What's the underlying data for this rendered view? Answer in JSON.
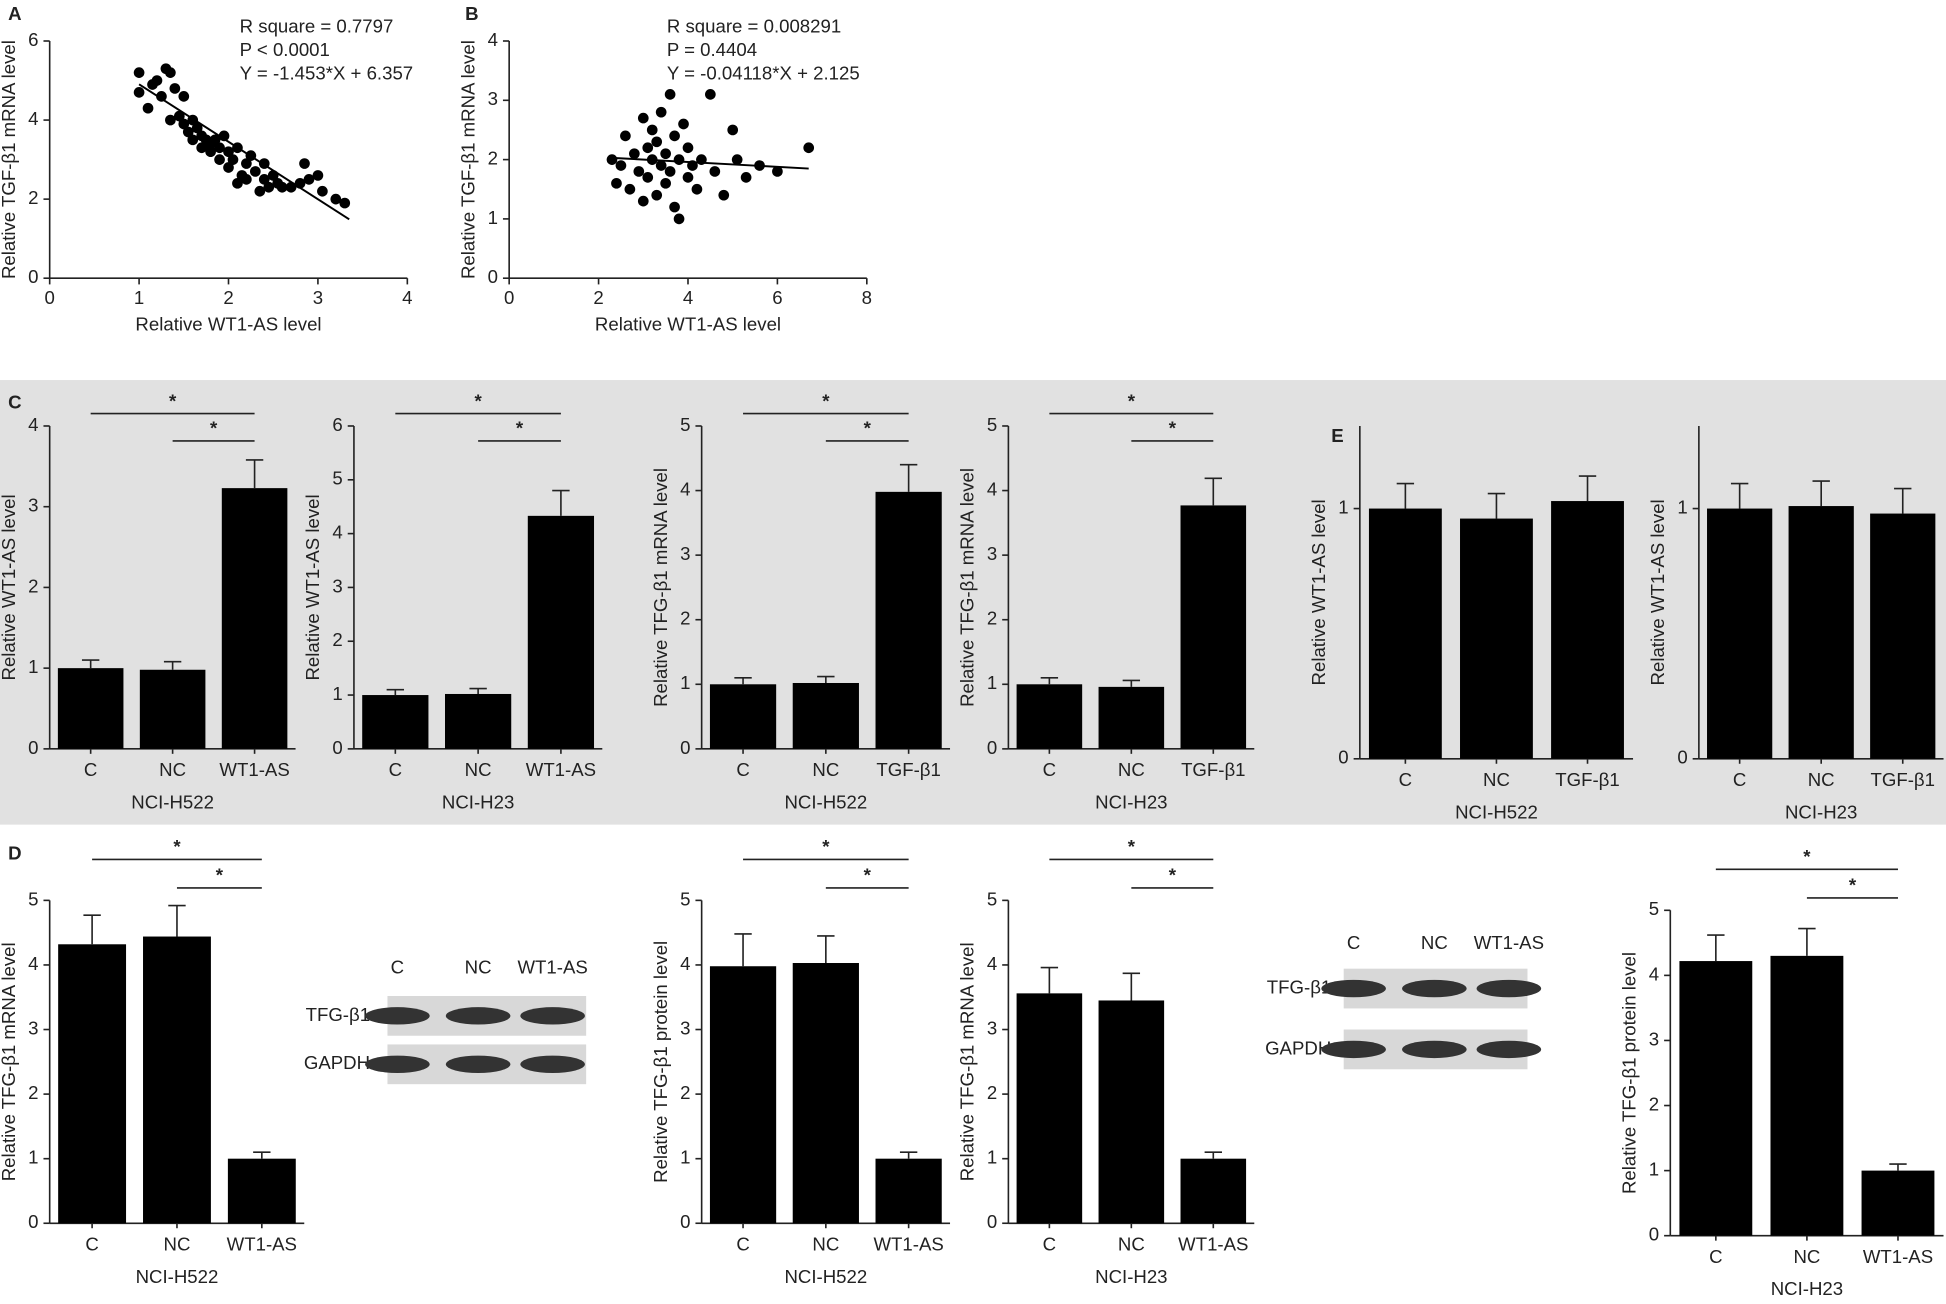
{
  "chart_data": [
    {
      "type": "scatter",
      "panel": "A",
      "xlabel": "Relative WT1-AS level",
      "ylabel": "Relative TGF-β1 mRNA level",
      "annotations": [
        "R square = 0.7797",
        "P < 0.0001",
        "Y = -1.453*X + 6.357"
      ],
      "xlim": [
        0,
        4
      ],
      "xticks": [
        0,
        1,
        2,
        3,
        4
      ],
      "ylim": [
        0,
        6
      ],
      "yticks": [
        0,
        2,
        4,
        6
      ],
      "color": "#000000",
      "x": [
        1.0,
        1.0,
        1.1,
        1.15,
        1.2,
        1.25,
        1.3,
        1.35,
        1.35,
        1.4,
        1.45,
        1.5,
        1.5,
        1.55,
        1.6,
        1.6,
        1.65,
        1.7,
        1.7,
        1.75,
        1.8,
        1.8,
        1.85,
        1.9,
        1.9,
        1.95,
        2.0,
        2.0,
        2.05,
        2.1,
        2.1,
        2.15,
        2.2,
        2.2,
        2.25,
        2.3,
        2.35,
        2.4,
        2.4,
        2.45,
        2.5,
        2.55,
        2.6,
        2.7,
        2.8,
        2.85,
        2.9,
        3.0,
        3.05,
        3.2,
        3.3
      ],
      "y": [
        5.2,
        4.7,
        4.3,
        4.9,
        5.0,
        4.6,
        5.3,
        5.2,
        4.0,
        4.8,
        4.1,
        4.6,
        3.9,
        3.7,
        4.0,
        3.5,
        3.8,
        3.6,
        3.3,
        3.5,
        3.4,
        3.2,
        3.5,
        3.3,
        3.0,
        3.6,
        3.2,
        2.8,
        3.0,
        2.4,
        3.3,
        2.6,
        2.9,
        2.5,
        3.1,
        2.7,
        2.2,
        2.5,
        2.9,
        2.3,
        2.6,
        2.4,
        2.3,
        2.3,
        2.4,
        2.9,
        2.5,
        2.6,
        2.2,
        2.0,
        1.9
      ],
      "fit": {
        "x": [
          1.0,
          3.35
        ],
        "y": [
          4.904,
          1.489
        ]
      }
    },
    {
      "type": "scatter",
      "panel": "B",
      "xlabel": "Relative WT1-AS level",
      "ylabel": "Relative TGF-β1 mRNA level",
      "annotations": [
        "R square = 0.008291",
        "P = 0.4404",
        "Y = -0.04118*X + 2.125"
      ],
      "xlim": [
        0,
        8
      ],
      "xticks": [
        0,
        2,
        4,
        6,
        8
      ],
      "ylim": [
        0,
        4
      ],
      "yticks": [
        0,
        1,
        2,
        3,
        4
      ],
      "color": "#000000",
      "x": [
        2.3,
        2.4,
        2.5,
        2.6,
        2.7,
        2.8,
        2.9,
        3.0,
        3.0,
        3.1,
        3.1,
        3.2,
        3.2,
        3.3,
        3.3,
        3.4,
        3.4,
        3.5,
        3.5,
        3.6,
        3.6,
        3.7,
        3.7,
        3.8,
        3.8,
        3.9,
        4.0,
        4.0,
        4.1,
        4.2,
        4.3,
        4.5,
        4.6,
        4.8,
        5.0,
        5.1,
        5.3,
        5.6,
        6.0,
        6.7
      ],
      "y": [
        2.0,
        1.6,
        1.9,
        2.4,
        1.5,
        2.1,
        1.8,
        2.7,
        1.3,
        2.2,
        1.7,
        2.5,
        2.0,
        1.4,
        2.3,
        1.9,
        2.8,
        2.1,
        1.6,
        3.1,
        1.8,
        2.4,
        1.2,
        2.0,
        1.0,
        2.6,
        1.7,
        2.2,
        1.9,
        1.5,
        2.0,
        3.1,
        1.8,
        1.4,
        2.5,
        2.0,
        1.7,
        1.9,
        1.8,
        2.2
      ],
      "fit": {
        "x": [
          2.3,
          6.7
        ],
        "y": [
          2.03,
          1.849
        ]
      }
    },
    {
      "type": "bar",
      "panel": "C",
      "ylabel": "Relative WT1-AS level",
      "xlabel": "NCI-H522",
      "categories": [
        "C",
        "NC",
        "WT1-AS"
      ],
      "values": [
        1.0,
        0.98,
        3.23
      ],
      "errors": [
        0.1,
        0.1,
        0.35
      ],
      "ylim": [
        0,
        4
      ],
      "yticks": [
        0,
        1,
        2,
        3,
        4
      ],
      "color": "#000000",
      "significance": [
        "*",
        "*"
      ]
    },
    {
      "type": "bar",
      "ylabel": "Relative WT1-AS level",
      "xlabel": "NCI-H23",
      "categories": [
        "C",
        "NC",
        "WT1-AS"
      ],
      "values": [
        1.0,
        1.02,
        4.33
      ],
      "errors": [
        0.1,
        0.1,
        0.47
      ],
      "ylim": [
        0,
        6
      ],
      "yticks": [
        0,
        1,
        2,
        3,
        4,
        5,
        6
      ],
      "color": "#000000",
      "significance": [
        "*",
        "*"
      ]
    },
    {
      "type": "bar",
      "ylabel": "Relative TFG-β1 mRNA level",
      "xlabel": "NCI-H522",
      "categories": [
        "C",
        "NC",
        "TGF-β1"
      ],
      "values": [
        1.0,
        1.02,
        3.98
      ],
      "errors": [
        0.1,
        0.1,
        0.42
      ],
      "ylim": [
        0,
        5
      ],
      "yticks": [
        0,
        1,
        2,
        3,
        4,
        5
      ],
      "color": "#000000",
      "significance": [
        "*",
        "*"
      ]
    },
    {
      "type": "bar",
      "ylabel": "Relative TFG-β1 mRNA level",
      "xlabel": "NCI-H23",
      "categories": [
        "C",
        "NC",
        "TGF-β1"
      ],
      "values": [
        1.0,
        0.96,
        3.77
      ],
      "errors": [
        0.1,
        0.1,
        0.42
      ],
      "ylim": [
        0,
        5
      ],
      "yticks": [
        0,
        1,
        2,
        3,
        4,
        5
      ],
      "color": "#000000",
      "significance": [
        "*",
        "*"
      ]
    },
    {
      "type": "bar",
      "panel": "E",
      "ylabel": "Relative WT1-AS level",
      "xlabel": "NCI-H522",
      "categories": [
        "C",
        "NC",
        "TGF-β1"
      ],
      "values": [
        1.0,
        0.96,
        1.03
      ],
      "errors": [
        0.1,
        0.1,
        0.1
      ],
      "ylim": [
        0,
        1.33
      ],
      "yticks": [
        0,
        1
      ],
      "color": "#000000"
    },
    {
      "type": "bar",
      "ylabel": "Relative WT1-AS level",
      "xlabel": "NCI-H23",
      "categories": [
        "C",
        "NC",
        "TGF-β1"
      ],
      "values": [
        1.0,
        1.01,
        0.98
      ],
      "errors": [
        0.1,
        0.1,
        0.1
      ],
      "ylim": [
        0,
        1.33
      ],
      "yticks": [
        0,
        1
      ],
      "color": "#000000"
    },
    {
      "type": "bar",
      "panel": "D",
      "ylabel": "Relative TFG-β1 mRNA level",
      "xlabel": "NCI-H522",
      "categories": [
        "C",
        "NC",
        "WT1-AS"
      ],
      "values": [
        4.32,
        4.44,
        1.0
      ],
      "errors": [
        0.45,
        0.48,
        0.1
      ],
      "ylim": [
        0,
        5
      ],
      "yticks": [
        0,
        1,
        2,
        3,
        4,
        5
      ],
      "color": "#000000",
      "significance": [
        "*",
        "*"
      ]
    },
    {
      "type": "blot",
      "lanes": [
        "C",
        "NC",
        "WT1-AS"
      ],
      "rows": [
        "TFG-β1",
        "GAPDH"
      ]
    },
    {
      "type": "bar",
      "ylabel": "Relative TFG-β1 protein level",
      "xlabel": "NCI-H522",
      "categories": [
        "C",
        "NC",
        "WT1-AS"
      ],
      "values": [
        3.98,
        4.03,
        1.0
      ],
      "errors": [
        0.5,
        0.42,
        0.1
      ],
      "ylim": [
        0,
        5
      ],
      "yticks": [
        0,
        1,
        2,
        3,
        4,
        5
      ],
      "color": "#000000",
      "significance": [
        "*",
        "*"
      ]
    },
    {
      "type": "bar",
      "ylabel": "Relative TFG-β1 mRNA level",
      "xlabel": "NCI-H23",
      "categories": [
        "C",
        "NC",
        "WT1-AS"
      ],
      "values": [
        3.56,
        3.45,
        1.0
      ],
      "errors": [
        0.4,
        0.42,
        0.1
      ],
      "ylim": [
        0,
        5
      ],
      "yticks": [
        0,
        1,
        2,
        3,
        4,
        5
      ],
      "color": "#000000",
      "significance": [
        "*",
        "*"
      ]
    },
    {
      "type": "blot",
      "lanes": [
        "C",
        "NC",
        "WT1-AS"
      ],
      "rows": [
        "TFG-β1",
        "GAPDH"
      ]
    },
    {
      "type": "bar",
      "ylabel": "Relative TFG-β1 protein level",
      "xlabel": "NCI-H23",
      "categories": [
        "C",
        "NC",
        "WT1-AS"
      ],
      "values": [
        4.22,
        4.3,
        1.0
      ],
      "errors": [
        0.4,
        0.42,
        0.1
      ],
      "ylim": [
        0,
        5
      ],
      "yticks": [
        0,
        1,
        2,
        3,
        4,
        5
      ],
      "color": "#000000",
      "significance": [
        "*",
        "*"
      ]
    }
  ]
}
